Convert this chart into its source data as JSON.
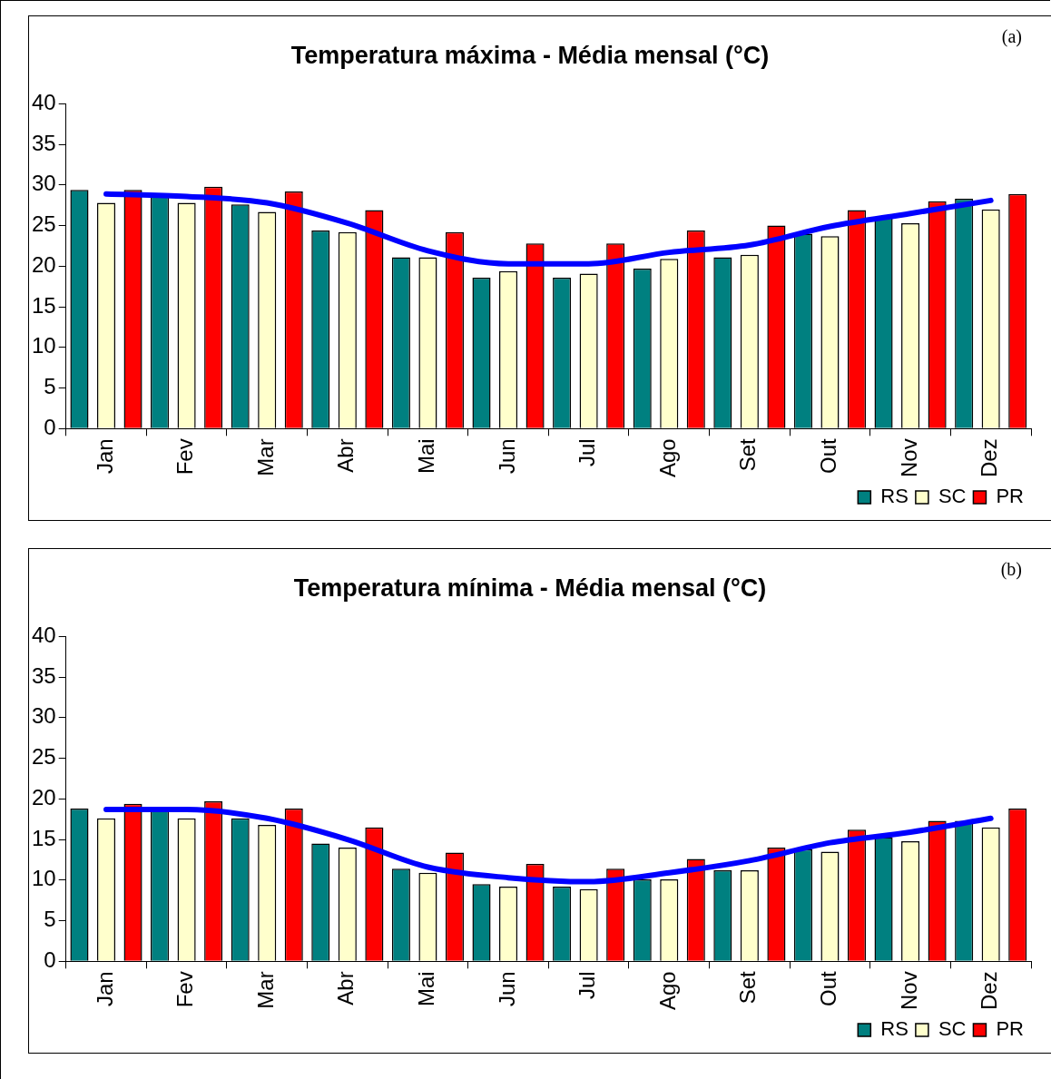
{
  "chart_data": [
    {
      "type": "bar",
      "title": "Temperatura máxima - Média mensal (°C)",
      "annotations": [
        "(a)"
      ],
      "categories": [
        "Jan",
        "Fev",
        "Mar",
        "Abr",
        "Mai",
        "Jun",
        "Jul",
        "Ago",
        "Set",
        "Out",
        "Nov",
        "Dez"
      ],
      "ylim": [
        0,
        40
      ],
      "yticks": [
        0,
        5,
        10,
        15,
        20,
        25,
        30,
        35,
        40
      ],
      "legend": "bottom right",
      "marker": "none",
      "series": [
        {
          "name": "RS",
          "color": "#008080",
          "values": [
            29.4,
            28.6,
            27.6,
            24.4,
            21.1,
            18.6,
            18.6,
            19.7,
            21.1,
            24.0,
            26.0,
            28.3
          ]
        },
        {
          "name": "SC",
          "color": "#ffffcc",
          "values": [
            27.8,
            27.8,
            26.7,
            24.2,
            21.1,
            19.4,
            19.1,
            20.9,
            21.4,
            23.7,
            25.3,
            27.0
          ]
        },
        {
          "name": "PR",
          "color": "#ff0000",
          "values": [
            29.4,
            29.8,
            29.2,
            26.9,
            24.2,
            22.8,
            22.8,
            24.4,
            25.0,
            26.9,
            28.0,
            28.9
          ]
        },
        {
          "type": "line",
          "color": "#0000ff",
          "values": [
            28.9,
            28.6,
            27.8,
            25.3,
            21.9,
            20.3,
            20.3,
            21.7,
            22.6,
            24.9,
            26.5,
            28.1
          ]
        }
      ]
    },
    {
      "type": "bar",
      "title": "Temperatura mínima - Média mensal (°C)",
      "annotations": [
        "(b)"
      ],
      "categories": [
        "Jan",
        "Fev",
        "Mar",
        "Abr",
        "Mai",
        "Jun",
        "Jul",
        "Ago",
        "Set",
        "Out",
        "Nov",
        "Dez"
      ],
      "ylim": [
        0,
        40
      ],
      "yticks": [
        0,
        5,
        10,
        15,
        20,
        25,
        30,
        35,
        40
      ],
      "legend": "bottom right",
      "marker": "none",
      "series": [
        {
          "name": "RS",
          "color": "#008080",
          "values": [
            18.8,
            18.7,
            17.6,
            14.5,
            11.4,
            9.5,
            9.2,
            10.1,
            11.2,
            13.8,
            15.3,
            17.3
          ]
        },
        {
          "name": "SC",
          "color": "#ffffcc",
          "values": [
            17.6,
            17.6,
            16.8,
            14.0,
            10.9,
            9.2,
            8.9,
            10.1,
            11.2,
            13.5,
            14.8,
            16.5
          ]
        },
        {
          "name": "PR",
          "color": "#ff0000",
          "values": [
            19.4,
            19.7,
            18.8,
            16.5,
            13.4,
            12.0,
            11.4,
            12.6,
            14.0,
            16.2,
            17.3,
            18.8
          ]
        },
        {
          "type": "line",
          "color": "#0000ff",
          "values": [
            18.7,
            18.7,
            17.6,
            15.0,
            11.6,
            10.3,
            9.8,
            10.9,
            12.4,
            14.6,
            15.9,
            17.6
          ]
        }
      ]
    }
  ]
}
